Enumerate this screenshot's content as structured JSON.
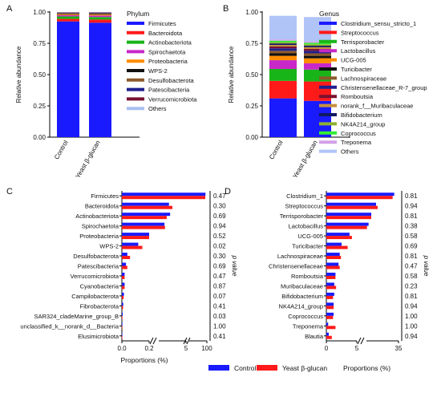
{
  "palette": {
    "control": "#1a1aff",
    "yeast": "#ff1a1a",
    "significant_p": "#e0201b",
    "normal_p": "#111111"
  },
  "legend_bottom": {
    "control_label": "Control",
    "yeast_label": "Yeast β-glucan",
    "proportions_label": "Proportions (%)"
  },
  "chart_data": [
    {
      "panel": "A",
      "type": "bar",
      "stacked": true,
      "ylabel": "Relative abundance",
      "ylim": [
        0,
        1.0
      ],
      "yticks": [
        "0.00",
        "0.25",
        "0.50",
        "0.75",
        "1.00"
      ],
      "categories": [
        "Control",
        "Yeast β-glucan"
      ],
      "legend_title": "Phylum",
      "series": [
        {
          "name": "Firmicutes",
          "color": "#1a1aff",
          "values": [
            0.925,
            0.915
          ]
        },
        {
          "name": "Bacteroidota",
          "color": "#ff1a1a",
          "values": [
            0.02,
            0.025
          ]
        },
        {
          "name": "Actinobacteriota",
          "color": "#18b418",
          "values": [
            0.02,
            0.02
          ]
        },
        {
          "name": "Spirochaetota",
          "color": "#c828c8",
          "values": [
            0.01,
            0.012
          ]
        },
        {
          "name": "Proteobacteria",
          "color": "#ff8c00",
          "values": [
            0.008,
            0.008
          ]
        },
        {
          "name": "WPS-2",
          "color": "#111111",
          "values": [
            0.004,
            0.005
          ]
        },
        {
          "name": "Desulfobacterota",
          "color": "#8b5a2b",
          "values": [
            0.005,
            0.006
          ]
        },
        {
          "name": "Patescibacteria",
          "color": "#1f1f8f",
          "values": [
            0.003,
            0.004
          ]
        },
        {
          "name": "Verrucomicrobiota",
          "color": "#7a1030",
          "values": [
            0.002,
            0.002
          ]
        },
        {
          "name": "Others",
          "color": "#a8c0f0",
          "values": [
            0.003,
            0.003
          ]
        }
      ]
    },
    {
      "panel": "B",
      "type": "bar",
      "stacked": true,
      "ylabel": "Relative abundance",
      "ylim": [
        0,
        1.0
      ],
      "yticks": [
        "0.00",
        "0.25",
        "0.50",
        "0.75",
        "1.00"
      ],
      "categories": [
        "Control",
        "Yeast β-glucan"
      ],
      "legend_title": "Genus",
      "series": [
        {
          "name": "Clostridium_sensu_stricto_1",
          "color": "#1a1aff",
          "values": [
            0.31,
            0.29
          ]
        },
        {
          "name": "Streptococcus",
          "color": "#ff1a1a",
          "values": [
            0.14,
            0.155
          ]
        },
        {
          "name": "Terrisporobacter",
          "color": "#18b418",
          "values": [
            0.095,
            0.095
          ]
        },
        {
          "name": "Lactobacillus",
          "color": "#c828c8",
          "values": [
            0.07,
            0.05
          ]
        },
        {
          "name": "UCG-005",
          "color": "#ff8c00",
          "values": [
            0.035,
            0.04
          ]
        },
        {
          "name": "Turicibacter",
          "color": "#111111",
          "values": [
            0.02,
            0.02
          ]
        },
        {
          "name": "Lachnospiraceae",
          "color": "#8b5a2b",
          "values": [
            0.02,
            0.02
          ]
        },
        {
          "name": "Christensenellaceae_R-7_group",
          "color": "#1f1f8f",
          "values": [
            0.02,
            0.02
          ]
        },
        {
          "name": "Romboutsia",
          "color": "#7a1030",
          "values": [
            0.015,
            0.015
          ]
        },
        {
          "name": "norank_f__Muribaculaceae",
          "color": "#c89040",
          "values": [
            0.012,
            0.014
          ]
        },
        {
          "name": "Bifidobacterium",
          "color": "#101a60",
          "values": [
            0.012,
            0.012
          ]
        },
        {
          "name": "NK4A214_group",
          "color": "#8fb030",
          "values": [
            0.01,
            0.011
          ]
        },
        {
          "name": "Coprococcus",
          "color": "#33ee33",
          "values": [
            0.012,
            0.012
          ]
        },
        {
          "name": "Treponema",
          "color": "#d3a0e8",
          "values": [
            0.01,
            0.011
          ]
        },
        {
          "name": "Others",
          "color": "#b0c4f8",
          "values": [
            0.189,
            0.195
          ]
        }
      ]
    },
    {
      "panel": "C",
      "type": "bar",
      "orientation": "horizontal",
      "xlabel": "Proportions (%)",
      "p_label": "p value",
      "axis_segments": [
        {
          "range": [
            0,
            0.2
          ],
          "ticks": [
            "0.0",
            "0.2"
          ]
        },
        {
          "range": [
            0.2,
            5
          ],
          "ticks": [
            "5"
          ]
        },
        {
          "range": [
            5,
            100
          ],
          "ticks": [
            "100"
          ]
        }
      ],
      "categories": [
        "Firmicutes",
        "Bacteroidota",
        "Actinobacteriota",
        "Spirochaetota",
        "Proteobacteria",
        "WPS-2",
        "Desulfobacterota",
        "Patescibacteria",
        "Verrucomicrobiota",
        "Cyanobacteria",
        "Campilobacterota",
        "Fibrobacterota",
        "SAR324_cladeMarine_group_B",
        "unclassified_k__norank_d__Bacteria",
        "Elusimicrobiota"
      ],
      "series": [
        {
          "name": "Control",
          "values": [
            92.5,
            2.0,
            2.2,
            1.2,
            0.2,
            0.12,
            0.04,
            0.03,
            0.02,
            0.02,
            0.015,
            0.01,
            0.006,
            0.004,
            0.003
          ]
        },
        {
          "name": "Yeast β-glucan",
          "values": [
            91.5,
            2.6,
            1.6,
            1.3,
            0.2,
            0.15,
            0.06,
            0.04,
            0.02,
            0.02,
            0.013,
            0.009,
            0.004,
            0.003,
            0.002
          ]
        }
      ],
      "p_values": [
        "0.47",
        "0.30",
        "0.69",
        "0.94",
        "0.52",
        "0.02",
        "0.30",
        "0.69",
        "0.47",
        "0.87",
        "0.07",
        "0.41",
        "0.03",
        "1.00",
        "0.41"
      ],
      "significant": [
        false,
        false,
        false,
        false,
        false,
        true,
        false,
        false,
        false,
        false,
        false,
        false,
        true,
        false,
        false
      ]
    },
    {
      "panel": "D",
      "type": "bar",
      "orientation": "horizontal",
      "xlabel": "Proportions (%)",
      "p_label": "p value",
      "axis_segments": [
        {
          "range": [
            0,
            5
          ],
          "ticks": [
            "0",
            "5"
          ]
        },
        {
          "range": [
            5,
            35
          ],
          "ticks": [
            "35"
          ]
        }
      ],
      "categories": [
        "Clostridium_1",
        "Streptococcus",
        "Terrisporobacter",
        "Lactobacillus",
        "UCG-005",
        "Turicibacter",
        "Lachnospiraceae",
        "Christensenellaceae",
        "Romboutsia",
        "Muribaculaceae",
        "Bifidobacterium",
        "NK4A214_group",
        "Coprococcus",
        "Treponema",
        "Blautia"
      ],
      "series": [
        {
          "name": "Control",
          "values": [
            31,
            14,
            9.5,
            7,
            3.8,
            2.5,
            2.2,
            2.0,
            1.5,
            1.3,
            1.3,
            1.2,
            1.2,
            0.3,
            0.4
          ]
        },
        {
          "name": "Yeast β-glucan",
          "values": [
            29.5,
            15.5,
            9.5,
            5.5,
            4.2,
            3.5,
            2.4,
            2.2,
            1.5,
            1.6,
            1.1,
            1.2,
            1.1,
            1.5,
            0.9
          ]
        }
      ],
      "p_values": [
        "0.81",
        "0.94",
        "0.81",
        "0.38",
        "0.58",
        "0.69",
        "0.81",
        "0.47",
        "0.58",
        "0.23",
        "0.81",
        "0.94",
        "1.00",
        "1.00",
        "0.94"
      ],
      "significant": [
        false,
        false,
        false,
        false,
        false,
        false,
        false,
        false,
        false,
        false,
        false,
        false,
        false,
        false,
        false
      ]
    }
  ]
}
